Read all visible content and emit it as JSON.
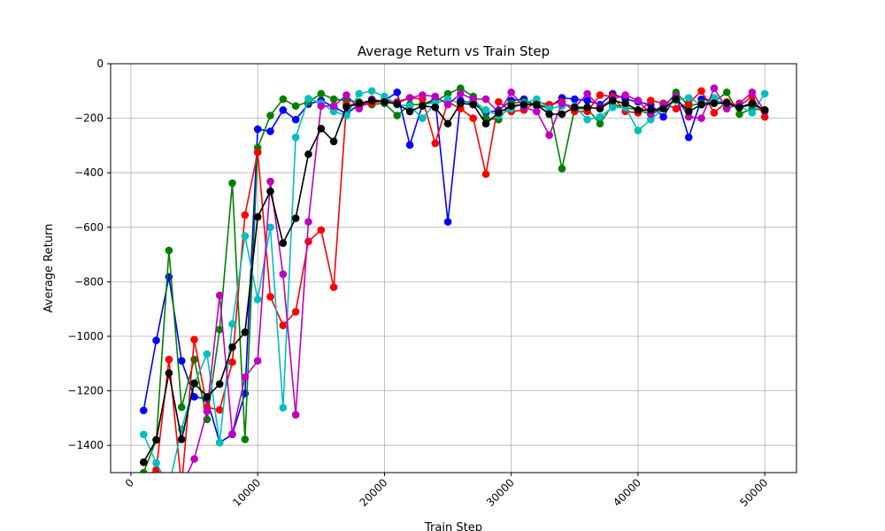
{
  "chart_data": {
    "type": "line",
    "title": "Average Return vs Train Step",
    "xlabel": "Train Step",
    "ylabel": "Average Return",
    "xlim": [
      -1600,
      52500
    ],
    "ylim": [
      -1500,
      0
    ],
    "xticks": [
      0,
      10000,
      20000,
      30000,
      40000,
      50000
    ],
    "yticks": [
      0,
      -200,
      -400,
      -600,
      -800,
      -1000,
      -1200,
      -1400
    ],
    "grid": true,
    "x": [
      1000,
      2000,
      3000,
      4000,
      5000,
      6000,
      7000,
      8000,
      9000,
      10000,
      11000,
      12000,
      13000,
      14000,
      15000,
      16000,
      17000,
      18000,
      19000,
      20000,
      21000,
      22000,
      23000,
      24000,
      25000,
      26000,
      27000,
      28000,
      29000,
      30000,
      31000,
      32000,
      33000,
      34000,
      35000,
      36000,
      37000,
      38000,
      39000,
      40000,
      41000,
      42000,
      43000,
      44000,
      45000,
      46000,
      47000,
      48000,
      49000,
      50000
    ],
    "series": [
      {
        "color": "#0000ff",
        "values": [
          -1272,
          -1015,
          -782,
          -1090,
          -1222,
          -1230,
          -1390,
          -1360,
          -1210,
          -240,
          -248,
          -170,
          -205,
          -148,
          -135,
          -158,
          -183,
          -150,
          -140,
          -135,
          -105,
          -298,
          -150,
          -130,
          -580,
          -135,
          -145,
          -180,
          -170,
          -135,
          -130,
          -155,
          -160,
          -125,
          -130,
          -135,
          -150,
          -110,
          -130,
          -140,
          -150,
          -195,
          -115,
          -270,
          -130,
          -135,
          -145,
          -160,
          -150,
          -170
        ]
      },
      {
        "color": "#008000",
        "values": [
          -1500,
          -1380,
          -685,
          -1260,
          -1085,
          -1305,
          -975,
          -438,
          -1378,
          -308,
          -190,
          -130,
          -155,
          -140,
          -110,
          -130,
          -135,
          -140,
          -150,
          -145,
          -190,
          -150,
          -150,
          -140,
          -110,
          -90,
          -120,
          -200,
          -205,
          -145,
          -140,
          -150,
          -160,
          -385,
          -165,
          -165,
          -220,
          -150,
          -160,
          -170,
          -185,
          -165,
          -105,
          -155,
          -145,
          -140,
          -105,
          -185,
          -165,
          -170
        ]
      },
      {
        "color": "#ff0000",
        "values": [
          -1520,
          -1490,
          -1085,
          -1550,
          -1012,
          -1260,
          -1270,
          -1095,
          -555,
          -325,
          -855,
          -960,
          -910,
          -652,
          -610,
          -820,
          -150,
          -155,
          -145,
          -135,
          -140,
          -125,
          -130,
          -292,
          -140,
          -165,
          -200,
          -405,
          -140,
          -175,
          -170,
          -140,
          -150,
          -140,
          -175,
          -175,
          -115,
          -120,
          -175,
          -180,
          -135,
          -145,
          -165,
          -145,
          -100,
          -180,
          -140,
          -155,
          -120,
          -195
        ]
      },
      {
        "color": "#00bfbf",
        "values": [
          -1360,
          -1465,
          -1550,
          -1340,
          -1175,
          -1065,
          -1390,
          -955,
          -632,
          -865,
          -600,
          -1262,
          -270,
          -128,
          -145,
          -175,
          -190,
          -110,
          -100,
          -120,
          -150,
          -155,
          -200,
          -145,
          -130,
          -145,
          -135,
          -170,
          -190,
          -165,
          -145,
          -130,
          -165,
          -155,
          -155,
          -205,
          -195,
          -160,
          -160,
          -245,
          -205,
          -165,
          -135,
          -125,
          -150,
          -125,
          -160,
          -155,
          -180,
          -110
        ]
      },
      {
        "color": "#bf00bf",
        "values": [
          -1525,
          -1545,
          -1550,
          -1550,
          -1450,
          -1275,
          -850,
          -1358,
          -1150,
          -1090,
          -432,
          -772,
          -1288,
          -580,
          -155,
          -155,
          -115,
          -165,
          -130,
          -140,
          -145,
          -125,
          -115,
          -120,
          -150,
          -110,
          -130,
          -130,
          -180,
          -105,
          -160,
          -175,
          -262,
          -145,
          -160,
          -110,
          -160,
          -130,
          -115,
          -135,
          -185,
          -150,
          -120,
          -195,
          -200,
          -90,
          -165,
          -145,
          -105,
          -175
        ]
      },
      {
        "color": "#000000",
        "values": [
          -1462,
          -1380,
          -1135,
          -1378,
          -1172,
          -1222,
          -1175,
          -1040,
          -985,
          -562,
          -468,
          -658,
          -567,
          -332,
          -238,
          -285,
          -158,
          -145,
          -135,
          -140,
          -148,
          -175,
          -155,
          -160,
          -220,
          -145,
          -150,
          -220,
          -180,
          -155,
          -150,
          -150,
          -185,
          -185,
          -160,
          -160,
          -165,
          -135,
          -145,
          -170,
          -170,
          -165,
          -130,
          -175,
          -150,
          -145,
          -145,
          -160,
          -145,
          -170
        ]
      }
    ]
  }
}
